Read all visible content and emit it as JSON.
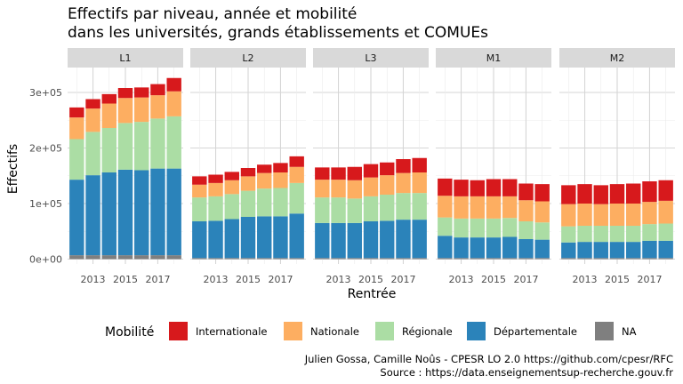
{
  "chart_data": {
    "type": "bar",
    "stacked": true,
    "faceted": true,
    "title": "Effectifs par niveau, année et mobilité\ndans les universités, grands établissements et COMUEs",
    "xlabel": "Rentrée",
    "ylabel": "Effectifs",
    "ylim": [
      0,
      320000
    ],
    "yticks": [
      0,
      100000,
      200000,
      300000
    ],
    "ytick_labels": [
      "0e+00",
      "1e+05",
      "2e+05",
      "3e+05"
    ],
    "x": [
      2012,
      2013,
      2014,
      2015,
      2016,
      2017,
      2018
    ],
    "xtick_labels": [
      "2013",
      "2015",
      "2017"
    ],
    "xtick_values": [
      2013,
      2015,
      2017
    ],
    "grid": true,
    "legend": {
      "title": "Mobilité",
      "position": "bottom",
      "entries": [
        "Internationale",
        "Nationale",
        "Régionale",
        "Départementale",
        "NA"
      ]
    },
    "colors": {
      "Internationale": "#d7191c",
      "Nationale": "#fdae61",
      "Régionale": "#abdda4",
      "Départementale": "#2b83ba",
      "NA": "#7f7f7f"
    },
    "facets": [
      {
        "label": "L1",
        "series": [
          {
            "name": "NA",
            "values": [
              7000,
              7000,
              7000,
              7000,
              7000,
              7000,
              7000
            ]
          },
          {
            "name": "Départementale",
            "values": [
              136000,
              144000,
              149000,
              154000,
              153000,
              156000,
              156000
            ]
          },
          {
            "name": "Régionale",
            "values": [
              73000,
              78000,
              80000,
              84000,
              87000,
              90000,
              94000
            ]
          },
          {
            "name": "Nationale",
            "values": [
              39000,
              42000,
              44000,
              45000,
              44000,
              42000,
              45000
            ]
          },
          {
            "name": "Internationale",
            "values": [
              18000,
              17000,
              17000,
              18000,
              18000,
              20000,
              24000
            ]
          }
        ]
      },
      {
        "label": "L2",
        "series": [
          {
            "name": "NA",
            "values": [
              2000,
              2000,
              2000,
              2000,
              2000,
              2000,
              2000
            ]
          },
          {
            "name": "Départementale",
            "values": [
              66000,
              67000,
              70000,
              74000,
              75000,
              75000,
              80000
            ]
          },
          {
            "name": "Régionale",
            "values": [
              43000,
              44000,
              45000,
              47000,
              50000,
              51000,
              55000
            ]
          },
          {
            "name": "Nationale",
            "values": [
              23000,
              24000,
              25000,
              26000,
              28000,
              28000,
              29000
            ]
          },
          {
            "name": "Internationale",
            "values": [
              15000,
              15000,
              15000,
              15000,
              15000,
              17000,
              19000
            ]
          }
        ]
      },
      {
        "label": "L3",
        "series": [
          {
            "name": "NA",
            "values": [
              2000,
              2000,
              2000,
              2000,
              2000,
              2000,
              2000
            ]
          },
          {
            "name": "Départementale",
            "values": [
              63000,
              63000,
              63000,
              66000,
              67000,
              69000,
              69000
            ]
          },
          {
            "name": "Régionale",
            "values": [
              46000,
              46000,
              44000,
              45000,
              47000,
              48000,
              48000
            ]
          },
          {
            "name": "Nationale",
            "values": [
              32000,
              32000,
              33000,
              34000,
              35000,
              36000,
              37000
            ]
          },
          {
            "name": "Internationale",
            "values": [
              22000,
              22000,
              24000,
              24000,
              23000,
              25000,
              26000
            ]
          }
        ]
      },
      {
        "label": "M1",
        "series": [
          {
            "name": "NA",
            "values": [
              2000,
              2000,
              2000,
              2000,
              2000,
              2000,
              2000
            ]
          },
          {
            "name": "Départementale",
            "values": [
              40000,
              37000,
              37000,
              37000,
              38000,
              34000,
              33000
            ]
          },
          {
            "name": "Régionale",
            "values": [
              33000,
              34000,
              34000,
              34000,
              34000,
              32000,
              31000
            ]
          },
          {
            "name": "Nationale",
            "values": [
              39000,
              40000,
              40000,
              40000,
              39000,
              38000,
              38000
            ]
          },
          {
            "name": "Internationale",
            "values": [
              31000,
              30000,
              29000,
              31000,
              31000,
              30000,
              31000
            ]
          }
        ]
      },
      {
        "label": "M2",
        "series": [
          {
            "name": "NA",
            "values": [
              2000,
              2000,
              2000,
              2000,
              2000,
              2000,
              2000
            ]
          },
          {
            "name": "Départementale",
            "values": [
              28000,
              29000,
              29000,
              29000,
              29000,
              31000,
              31000
            ]
          },
          {
            "name": "Régionale",
            "values": [
              29000,
              29000,
              29000,
              29000,
              29000,
              30000,
              31000
            ]
          },
          {
            "name": "Nationale",
            "values": [
              40000,
              40000,
              39000,
              40000,
              40000,
              40000,
              41000
            ]
          },
          {
            "name": "Internationale",
            "values": [
              34000,
              35000,
              34000,
              35000,
              36000,
              37000,
              37000
            ]
          }
        ]
      }
    ]
  },
  "caption": {
    "line1": "Julien Gossa, Camille Noûs - CPESR LO 2.0 https://github.com/cpesr/RFC",
    "line2": "Source : https://data.enseignementsup-recherche.gouv.fr"
  }
}
